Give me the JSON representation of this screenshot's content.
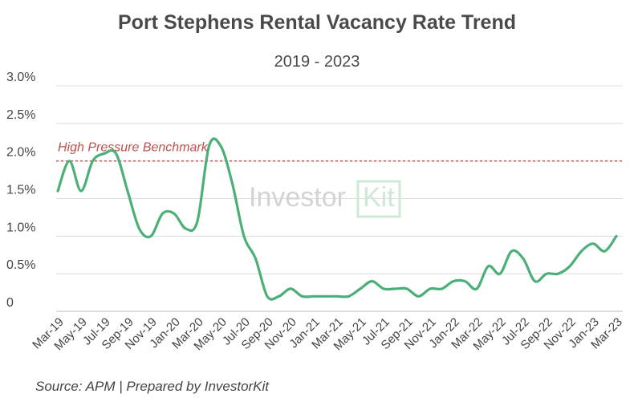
{
  "chart_data": {
    "type": "line",
    "title": "Port Stephens Rental Vacancy Rate Trend",
    "subtitle": "2019 - 2023",
    "xlabel": "",
    "ylabel": "",
    "y_tick_labels": [
      "0",
      "0.5%",
      "1.0%",
      "1.5%",
      "2.0%",
      "2.5%",
      "3.0%"
    ],
    "ylim": [
      0,
      3.0
    ],
    "grid": true,
    "x_tick_labels": [
      "Mar-19",
      "May-19",
      "Jul-19",
      "Sep-19",
      "Nov-19",
      "Jan-20",
      "Mar-20",
      "May-20",
      "Jul-20",
      "Sep-20",
      "Nov-20",
      "Jan-21",
      "Mar-21",
      "May-21",
      "Jul-21",
      "Sep-21",
      "Nov-21",
      "Jan-22",
      "Mar-22",
      "May-22",
      "Jul-22",
      "Sep-22",
      "Nov-22",
      "Jan-23",
      "Mar-23"
    ],
    "months": [
      "Mar-19",
      "Apr-19",
      "May-19",
      "Jun-19",
      "Jul-19",
      "Aug-19",
      "Sep-19",
      "Oct-19",
      "Nov-19",
      "Dec-19",
      "Jan-20",
      "Feb-20",
      "Mar-20",
      "Apr-20",
      "May-20",
      "Jun-20",
      "Jul-20",
      "Aug-20",
      "Sep-20",
      "Oct-20",
      "Nov-20",
      "Dec-20",
      "Jan-21",
      "Feb-21",
      "Mar-21",
      "Apr-21",
      "May-21",
      "Jun-21",
      "Jul-21",
      "Aug-21",
      "Sep-21",
      "Oct-21",
      "Nov-21",
      "Dec-21",
      "Jan-22",
      "Feb-22",
      "Mar-22",
      "Apr-22",
      "May-22",
      "Jun-22",
      "Jul-22",
      "Aug-22",
      "Sep-22",
      "Oct-22",
      "Nov-22",
      "Dec-22",
      "Jan-23",
      "Feb-23",
      "Mar-23"
    ],
    "series": [
      {
        "values": [
          1.6,
          2.0,
          1.6,
          2.0,
          2.1,
          2.1,
          1.6,
          1.1,
          1.0,
          1.3,
          1.3,
          1.1,
          1.2,
          2.2,
          2.2,
          1.7,
          1.0,
          0.7,
          0.2,
          0.2,
          0.3,
          0.2,
          0.2,
          0.2,
          0.2,
          0.2,
          0.3,
          0.4,
          0.3,
          0.3,
          0.3,
          0.2,
          0.3,
          0.3,
          0.4,
          0.4,
          0.3,
          0.6,
          0.5,
          0.8,
          0.7,
          0.4,
          0.5,
          0.5,
          0.6,
          0.8,
          0.9,
          0.8,
          1.0
        ],
        "color": "#4caf78"
      }
    ],
    "benchmark": {
      "label": "High Pressure Benchmark",
      "value": 2.0,
      "color": "#c0504d"
    }
  },
  "watermark": {
    "text": "Investor",
    "box_text": "Kit"
  },
  "source": "Source: APM | Prepared by InvestorKit"
}
